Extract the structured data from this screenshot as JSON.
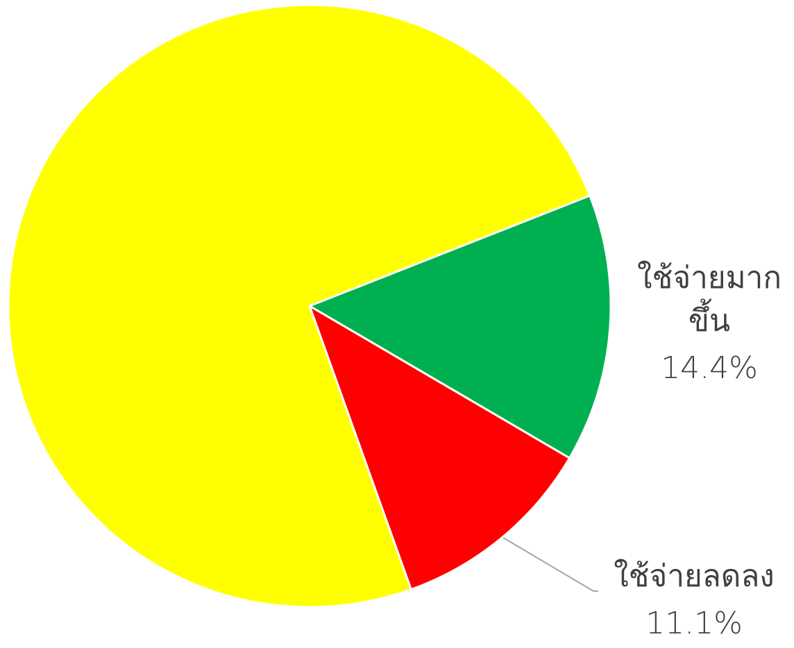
{
  "chart_data": {
    "type": "pie",
    "categories": [
      "ใช้จ่ายมากขึ้น",
      "ใช้จ่ายลดลง",
      null
    ],
    "values": [
      14.4,
      11.1,
      74.5
    ],
    "value_labels": [
      "14.4%",
      "11.1%",
      null
    ],
    "colors": [
      "#00b050",
      "#ff0000",
      "#ffff00"
    ]
  }
}
